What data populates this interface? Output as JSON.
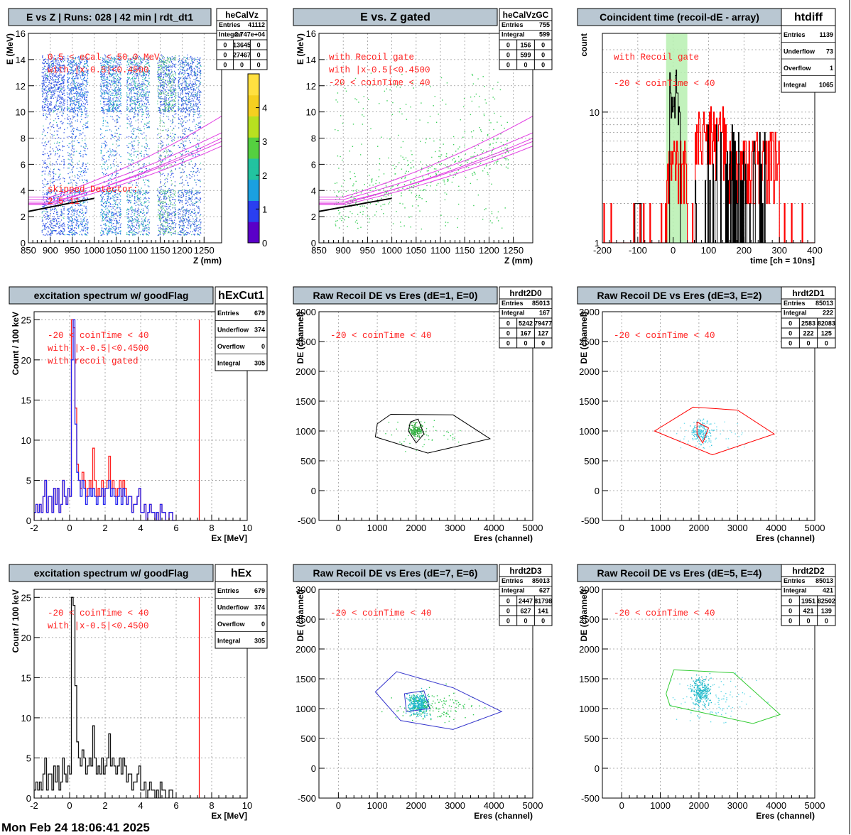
{
  "footer": "Mon Feb 24 18:06:41 2025",
  "chart_data": [
    {
      "id": "p1",
      "type": "heatmap",
      "title": "E vs Z | Runs: 028 | 42 min | rdt_dt1",
      "stats_name": "heCalVz",
      "stats": [
        [
          "Entries",
          "41112"
        ],
        [
          "Integral",
          "2.747e+04"
        ]
      ],
      "stats_grid": [
        [
          "0",
          "13645",
          "0"
        ],
        [
          "0",
          "27467",
          "0"
        ],
        [
          "0",
          "0",
          "0"
        ]
      ],
      "xlabel": "Z (mm)",
      "ylabel": "E (MeV)",
      "xlim": [
        850,
        1290
      ],
      "ylim": [
        0,
        16
      ],
      "xticks": [
        850,
        900,
        950,
        1000,
        1050,
        1100,
        1150,
        1200,
        1250
      ],
      "yticks": [
        0,
        2,
        4,
        6,
        8,
        10,
        12,
        14,
        16
      ],
      "colorbar": {
        "range": [
          0,
          5
        ],
        "ticks": [
          0,
          1,
          2,
          3,
          4
        ]
      },
      "annotations": [
        "0.5 < eCal < 50.0 MeV",
        "with |x-0.5|<0.4500",
        "skipped Detector:",
        "2    5    11"
      ],
      "detector_bands": [
        [
          880,
          932
        ],
        [
          937,
          985
        ],
        [
          1013,
          1060
        ],
        [
          1073,
          1125
        ],
        [
          1143,
          1185
        ],
        [
          1190,
          1242
        ]
      ]
    },
    {
      "id": "p2",
      "type": "scatter",
      "title": "E vs. Z gated",
      "stats_name": "heCalVzGC",
      "stats": [
        [
          "Entries",
          "755"
        ],
        [
          "Integral",
          "599"
        ]
      ],
      "stats_grid": [
        [
          "0",
          "156",
          "0"
        ],
        [
          "0",
          "599",
          "0"
        ],
        [
          "0",
          "0",
          "0"
        ]
      ],
      "xlabel": "Z (mm)",
      "ylabel": "E (MeV)",
      "xlim": [
        850,
        1290
      ],
      "ylim": [
        0,
        16
      ],
      "xticks": [
        850,
        900,
        950,
        1000,
        1050,
        1100,
        1150,
        1200,
        1250
      ],
      "yticks": [
        0,
        2,
        4,
        6,
        8,
        10,
        12,
        14,
        16
      ],
      "annotations": [
        "with Recoil gate",
        "with |x-0.5|<0.4500",
        "-20 < coinTime < 40"
      ]
    },
    {
      "id": "p3",
      "type": "bar",
      "title": "Coincident time (recoil-dE - array)",
      "stats_name": "htdiff",
      "stats": [
        [
          "Entries",
          "1139"
        ],
        [
          "Underflow",
          "73"
        ],
        [
          "Overflow",
          "1"
        ],
        [
          "Integral",
          "1065"
        ]
      ],
      "xlabel": "time [ch = 10ns]",
      "ylabel": "count",
      "xlim": [
        -200,
        400
      ],
      "ylim": [
        1,
        40
      ],
      "log_y": true,
      "xticks": [
        -200,
        -100,
        0,
        100,
        200,
        300,
        400
      ],
      "yticks": [
        1,
        10
      ],
      "gate": [
        -20,
        40
      ],
      "annotations": [
        "with Recoil gate",
        "-20 < coinTime < 40"
      ]
    },
    {
      "id": "p4",
      "type": "bar",
      "title": "excitation spectrum w/ goodFlag",
      "stats_name": "hExCut1",
      "stats": [
        [
          "Entries",
          "679"
        ],
        [
          "Underflow",
          "374"
        ],
        [
          "Overflow",
          "0"
        ],
        [
          "Integral",
          "305"
        ]
      ],
      "xlabel": "Ex [MeV]",
      "ylabel": "Count /  100 keV",
      "xlim": [
        -2,
        10
      ],
      "ylim": [
        0,
        26
      ],
      "xticks": [
        -2,
        0,
        2,
        4,
        6,
        8,
        10
      ],
      "yticks": [
        0,
        5,
        10,
        15,
        20,
        25
      ],
      "marker_x": 7.3,
      "annotations": [
        "-20 < coinTime < 40",
        "with |x-0.5|<0.4500",
        "with recoil gated"
      ],
      "x0": -2.0,
      "bin": 0.1,
      "series": [
        {
          "name": "blue",
          "values": [
            1,
            2,
            1,
            2,
            1,
            3,
            5,
            1,
            3,
            3,
            1,
            4,
            2,
            4,
            1,
            2,
            5,
            3,
            2,
            4,
            3,
            20,
            25,
            12,
            6,
            5,
            3,
            5,
            4,
            2,
            3,
            4,
            3,
            4,
            3,
            2,
            3,
            3,
            4,
            2,
            4,
            4,
            5,
            3,
            4,
            3,
            2,
            3,
            4,
            2,
            4,
            3,
            2,
            3,
            3,
            1,
            2,
            2,
            3,
            4,
            1,
            1,
            2,
            0,
            1,
            2,
            1,
            1,
            0,
            1,
            0,
            2,
            1,
            1,
            0,
            0,
            1,
            1,
            0,
            0
          ]
        },
        {
          "name": "red",
          "values": [
            1,
            2,
            1,
            2,
            1,
            3,
            5,
            1,
            3,
            3,
            1,
            4,
            2,
            4,
            1,
            2,
            5,
            3,
            2,
            4,
            3,
            25,
            24,
            14,
            7,
            5,
            4,
            6,
            5,
            3,
            4,
            5,
            4,
            9,
            5,
            3,
            4,
            3,
            5,
            3,
            4,
            5,
            8,
            4,
            5,
            4,
            3,
            4,
            5,
            3,
            5,
            4,
            2,
            3,
            3,
            1,
            2,
            2,
            3,
            4,
            1,
            1,
            2,
            0,
            1,
            2,
            1,
            1,
            0,
            1,
            0,
            2,
            1,
            1,
            0,
            0,
            1,
            1,
            0,
            0
          ]
        }
      ]
    },
    {
      "id": "p5",
      "type": "scatter",
      "title": "Raw Recoil DE vs Eres (dE=1, E=0)",
      "stats_name": "hrdt2D0",
      "stats": [
        [
          "Entries",
          "85013"
        ],
        [
          "Integral",
          "167"
        ]
      ],
      "stats_grid": [
        [
          "0",
          "5242",
          "79477"
        ],
        [
          "0",
          "167",
          "127"
        ],
        [
          "0",
          "0",
          "0"
        ]
      ],
      "xlabel": "Eres (channel)",
      "ylabel": "DE (channel)",
      "xlim": [
        -500,
        5000
      ],
      "ylim": [
        -500,
        3000
      ],
      "xticks": [
        0,
        1000,
        2000,
        3000,
        4000,
        5000
      ],
      "yticks": [
        -500,
        0,
        500,
        1000,
        1500,
        2000,
        2500,
        3000
      ],
      "annotations": [
        "-20 < coinTime < 40"
      ],
      "cut_color": "#000000",
      "outer_cut": [
        [
          1000,
          1120
        ],
        [
          1350,
          1280
        ],
        [
          2950,
          1270
        ],
        [
          3900,
          870
        ],
        [
          2300,
          630
        ],
        [
          950,
          900
        ]
      ],
      "inner_cut": [
        [
          1850,
          1150
        ],
        [
          2050,
          1200
        ],
        [
          2200,
          950
        ],
        [
          2000,
          800
        ],
        [
          1800,
          1000
        ]
      ]
    },
    {
      "id": "p6",
      "type": "scatter",
      "title": "Raw Recoil DE vs Eres (dE=3, E=2)",
      "stats_name": "hrdt2D1",
      "stats": [
        [
          "Entries",
          "85013"
        ],
        [
          "Integral",
          "222"
        ]
      ],
      "stats_grid": [
        [
          "0",
          "2583",
          "82083"
        ],
        [
          "0",
          "222",
          "125"
        ],
        [
          "0",
          "0",
          "0"
        ]
      ],
      "xlabel": "Eres (channel)",
      "ylabel": "DE (channel)",
      "xlim": [
        -500,
        5000
      ],
      "ylim": [
        -500,
        3000
      ],
      "xticks": [
        0,
        1000,
        2000,
        3000,
        4000,
        5000
      ],
      "yticks": [
        -500,
        0,
        500,
        1000,
        1500,
        2000,
        2500,
        3000
      ],
      "annotations": [
        "-20 < coinTime < 40"
      ],
      "cut_color": "#ff0000",
      "outer_cut": [
        [
          850,
          1000
        ],
        [
          1850,
          1400
        ],
        [
          3000,
          1350
        ],
        [
          3950,
          950
        ],
        [
          2350,
          600
        ]
      ],
      "inner_cut": [
        [
          1950,
          1150
        ],
        [
          2250,
          1050
        ],
        [
          2100,
          800
        ],
        [
          1950,
          950
        ]
      ]
    },
    {
      "id": "p7",
      "type": "bar",
      "title": "excitation spectrum w/ goodFlag",
      "stats_name": "hEx",
      "stats": [
        [
          "Entries",
          "679"
        ],
        [
          "Underflow",
          "374"
        ],
        [
          "Overflow",
          "0"
        ],
        [
          "Integral",
          "305"
        ]
      ],
      "xlabel": "Ex [MeV]",
      "ylabel": "Count /  100 keV",
      "xlim": [
        -2,
        10
      ],
      "ylim": [
        0,
        26
      ],
      "xticks": [
        -2,
        0,
        2,
        4,
        6,
        8,
        10
      ],
      "yticks": [
        0,
        5,
        10,
        15,
        20,
        25
      ],
      "marker_x": 7.3,
      "annotations": [
        "-20 < coinTime < 40",
        "with |x-0.5|<0.4500"
      ],
      "x0": -2.0,
      "bin": 0.1,
      "series": [
        {
          "name": "black",
          "values": [
            1,
            2,
            1,
            2,
            1,
            3,
            5,
            1,
            3,
            3,
            1,
            4,
            2,
            4,
            1,
            2,
            5,
            3,
            2,
            4,
            3,
            25,
            24,
            14,
            7,
            5,
            4,
            6,
            5,
            3,
            4,
            5,
            4,
            9,
            5,
            3,
            4,
            3,
            5,
            3,
            4,
            5,
            8,
            4,
            5,
            4,
            3,
            4,
            5,
            3,
            5,
            4,
            2,
            3,
            3,
            1,
            2,
            2,
            3,
            4,
            1,
            1,
            2,
            0,
            1,
            2,
            1,
            1,
            0,
            1,
            0,
            2,
            1,
            1,
            0,
            0,
            1,
            1,
            0,
            0
          ]
        }
      ]
    },
    {
      "id": "p8",
      "type": "scatter",
      "title": "Raw Recoil DE vs Eres (dE=7, E=6)",
      "stats_name": "hrdt2D3",
      "stats": [
        [
          "Entries",
          "85013"
        ],
        [
          "Integral",
          "627"
        ]
      ],
      "stats_grid": [
        [
          "0",
          "2447",
          "81798"
        ],
        [
          "0",
          "627",
          "141"
        ],
        [
          "0",
          "0",
          "0"
        ]
      ],
      "xlabel": "Eres (channel)",
      "ylabel": "DE (channel)",
      "xlim": [
        -500,
        5000
      ],
      "ylim": [
        -500,
        3000
      ],
      "xticks": [
        0,
        1000,
        2000,
        3000,
        4000,
        5000
      ],
      "yticks": [
        -500,
        0,
        500,
        1000,
        1500,
        2000,
        2500,
        3000
      ],
      "annotations": [
        "-20 < coinTime < 40"
      ],
      "cut_color": "#3333cc",
      "outer_cut": [
        [
          950,
          1280
        ],
        [
          1500,
          1620
        ],
        [
          2950,
          1350
        ],
        [
          4200,
          950
        ],
        [
          2950,
          650
        ],
        [
          1600,
          800
        ]
      ],
      "inner_cut": [
        [
          1700,
          1250
        ],
        [
          2200,
          1300
        ],
        [
          2350,
          1000
        ],
        [
          1750,
          950
        ]
      ]
    },
    {
      "id": "p9",
      "type": "scatter",
      "title": "Raw Recoil DE vs Eres (dE=5, E=4)",
      "stats_name": "hrdt2D2",
      "stats": [
        [
          "Entries",
          "85013"
        ],
        [
          "Integral",
          "421"
        ]
      ],
      "stats_grid": [
        [
          "0",
          "1951",
          "82502"
        ],
        [
          "0",
          "421",
          "139"
        ],
        [
          "0",
          "0",
          "0"
        ]
      ],
      "xlabel": "Eres (channel)",
      "ylabel": "DE (channel)",
      "xlim": [
        -500,
        5000
      ],
      "ylim": [
        -500,
        3000
      ],
      "xticks": [
        0,
        1000,
        2000,
        3000,
        4000,
        5000
      ],
      "yticks": [
        -500,
        0,
        500,
        1000,
        1500,
        2000,
        2500,
        3000
      ],
      "annotations": [
        "-20 < coinTime < 40"
      ],
      "cut_color": "#33cc33",
      "outer_cut": [
        [
          1150,
          1250
        ],
        [
          1350,
          1650
        ],
        [
          2900,
          1600
        ],
        [
          4100,
          900
        ],
        [
          3400,
          750
        ],
        [
          1250,
          1050
        ]
      ]
    }
  ]
}
